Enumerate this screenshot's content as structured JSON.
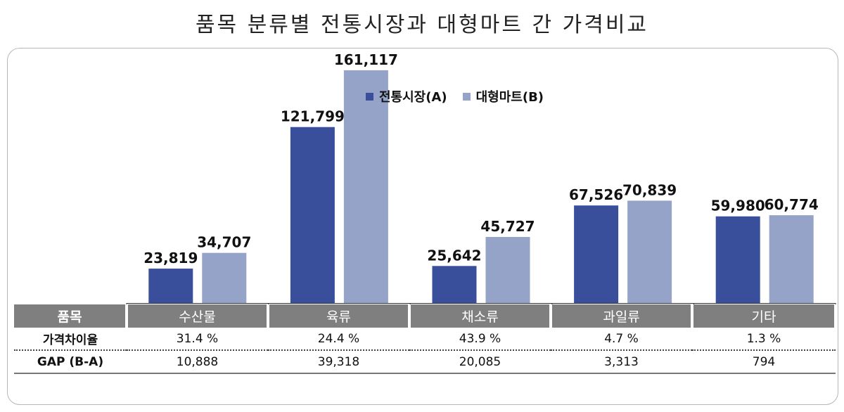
{
  "title": "품목 분류별 전통시장과 대형마트 간 가격비교",
  "chart_data": {
    "type": "bar",
    "categories": [
      "수산물",
      "육류",
      "채소류",
      "과일류",
      "기타"
    ],
    "series": [
      {
        "name": "전통시장(A)",
        "color": "#3a4f9c",
        "values": [
          23819,
          121799,
          25642,
          67526,
          59980
        ]
      },
      {
        "name": "대형마트(B)",
        "color": "#95a3c8",
        "values": [
          34707,
          161117,
          45727,
          70839,
          60774
        ]
      }
    ],
    "value_labels": [
      [
        "23,819",
        "121,799",
        "25,642",
        "67,526",
        "59,980"
      ],
      [
        "34,707",
        "161,117",
        "45,727",
        "70,839",
        "60,774"
      ]
    ],
    "ylim": [
      0,
      200000
    ],
    "grid": false,
    "legend_position": "top"
  },
  "table": {
    "header_label": "품목",
    "rows": [
      {
        "label": "가격차이율",
        "values": [
          "31.4 %",
          "24.4 %",
          "43.9 %",
          "4.7 %",
          "1.3 %"
        ]
      },
      {
        "label": "GAP (B-A)",
        "values": [
          "10,888",
          "39,318",
          "20,085",
          "3,313",
          "794"
        ]
      }
    ]
  }
}
